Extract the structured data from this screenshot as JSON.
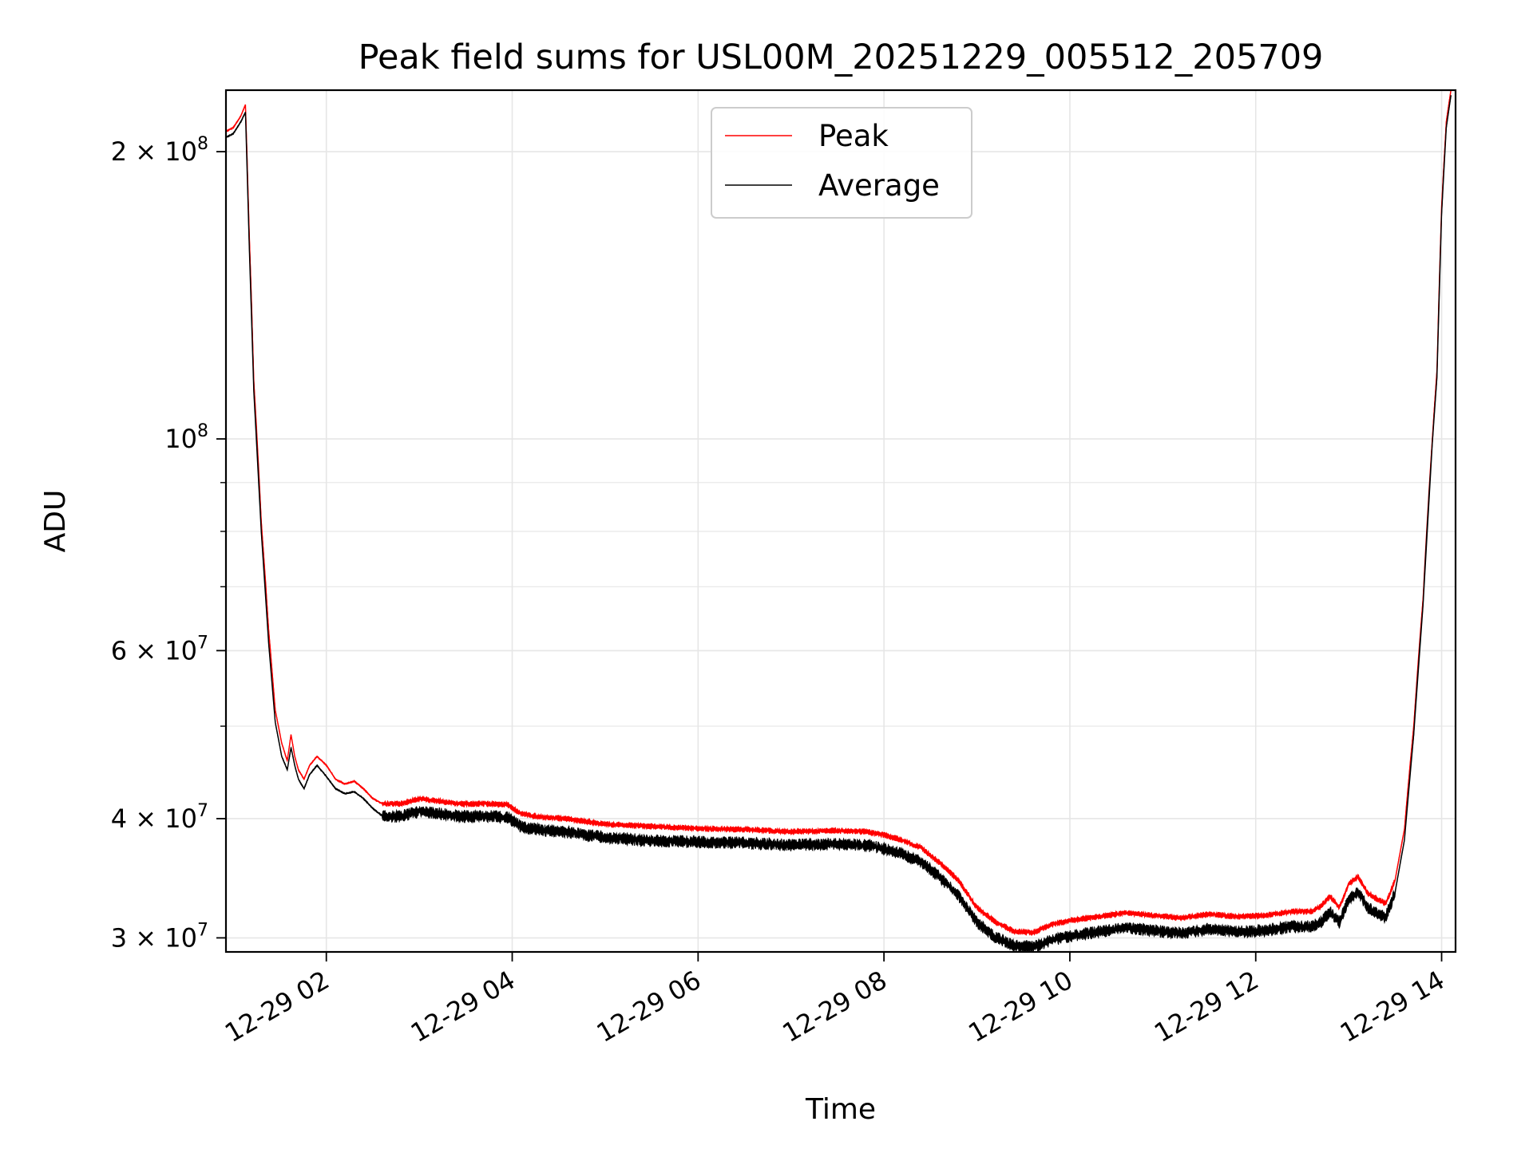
{
  "chart_data": {
    "type": "line",
    "title": "Peak field sums for USL00M_20251229_005512_205709",
    "xlabel": "Time",
    "ylabel": "ADU",
    "yscale": "log",
    "xlim_hours": [
      0.92,
      14.15
    ],
    "ylim": [
      29000000,
      232000000
    ],
    "grid": true,
    "legend_position": "top-center",
    "x_ticks": [
      {
        "hour": 2,
        "label": "12-29 02"
      },
      {
        "hour": 4,
        "label": "12-29 04"
      },
      {
        "hour": 6,
        "label": "12-29 06"
      },
      {
        "hour": 8,
        "label": "12-29 08"
      },
      {
        "hour": 10,
        "label": "12-29 10"
      },
      {
        "hour": 12,
        "label": "12-29 12"
      },
      {
        "hour": 14,
        "label": "12-29 14"
      }
    ],
    "y_ticks": [
      {
        "value": 30000000,
        "mantissa": "3",
        "exp": "7"
      },
      {
        "value": 40000000,
        "mantissa": "4",
        "exp": "7"
      },
      {
        "value": 60000000,
        "mantissa": "6",
        "exp": "7"
      },
      {
        "value": 100000000,
        "mantissa": "",
        "exp": "8"
      },
      {
        "value": 200000000,
        "mantissa": "2",
        "exp": "8"
      }
    ],
    "y_minor_ticks": [
      50000000,
      70000000,
      80000000,
      90000000
    ],
    "series": [
      {
        "name": "Peak",
        "color": "#ff0000",
        "x_hours": [
          0.92,
          1.0,
          1.08,
          1.13,
          1.17,
          1.22,
          1.3,
          1.38,
          1.45,
          1.52,
          1.58,
          1.62,
          1.66,
          1.7,
          1.76,
          1.82,
          1.9,
          2.0,
          2.1,
          2.2,
          2.3,
          2.4,
          2.5,
          2.6,
          2.7,
          2.8,
          3.0,
          3.2,
          3.4,
          3.6,
          3.8,
          3.95,
          4.1,
          4.3,
          4.6,
          5.0,
          5.5,
          6.0,
          6.5,
          7.0,
          7.5,
          7.8,
          8.0,
          8.2,
          8.4,
          8.6,
          8.8,
          9.0,
          9.2,
          9.4,
          9.6,
          9.8,
          10.0,
          10.3,
          10.6,
          10.9,
          11.2,
          11.5,
          11.8,
          12.1,
          12.4,
          12.6,
          12.7,
          12.8,
          12.9,
          13.0,
          13.1,
          13.2,
          13.3,
          13.4,
          13.5,
          13.6,
          13.7,
          13.8,
          13.9,
          13.95,
          14.0,
          14.05,
          14.1
        ],
        "values": [
          210000000,
          212000000,
          218000000,
          224000000,
          165000000,
          115000000,
          82000000,
          63000000,
          52000000,
          48000000,
          46000000,
          49000000,
          46500000,
          45000000,
          44000000,
          45500000,
          46500000,
          45500000,
          44000000,
          43500000,
          43800000,
          43000000,
          42000000,
          41500000,
          41500000,
          41500000,
          42000000,
          41800000,
          41500000,
          41500000,
          41500000,
          41400000,
          40500000,
          40200000,
          40000000,
          39500000,
          39300000,
          39100000,
          39000000,
          38800000,
          38900000,
          38800000,
          38500000,
          38000000,
          37300000,
          36000000,
          34500000,
          32300000,
          31200000,
          30500000,
          30400000,
          31000000,
          31300000,
          31600000,
          31900000,
          31700000,
          31500000,
          31800000,
          31600000,
          31700000,
          32000000,
          32000000,
          32400000,
          33200000,
          32300000,
          34200000,
          34800000,
          33500000,
          33000000,
          32600000,
          34500000,
          39000000,
          50000000,
          68000000,
          100000000,
          118000000,
          175000000,
          215000000,
          232000000
        ]
      },
      {
        "name": "Average",
        "color": "#000000",
        "x_hours": [
          0.92,
          1.0,
          1.08,
          1.13,
          1.17,
          1.22,
          1.3,
          1.38,
          1.45,
          1.52,
          1.58,
          1.62,
          1.66,
          1.7,
          1.76,
          1.82,
          1.9,
          2.0,
          2.1,
          2.2,
          2.3,
          2.4,
          2.5,
          2.6,
          2.7,
          2.8,
          3.0,
          3.2,
          3.4,
          3.6,
          3.8,
          3.95,
          4.1,
          4.3,
          4.6,
          5.0,
          5.5,
          6.0,
          6.5,
          7.0,
          7.5,
          7.8,
          8.0,
          8.2,
          8.4,
          8.6,
          8.8,
          9.0,
          9.2,
          9.4,
          9.6,
          9.8,
          10.0,
          10.3,
          10.6,
          10.9,
          11.2,
          11.5,
          11.8,
          12.1,
          12.4,
          12.6,
          12.7,
          12.8,
          12.9,
          13.0,
          13.1,
          13.2,
          13.3,
          13.4,
          13.5,
          13.6,
          13.7,
          13.8,
          13.9,
          13.95,
          14.0,
          14.05,
          14.1
        ],
        "values": [
          207000000,
          209000000,
          215000000,
          220000000,
          160000000,
          112000000,
          80000000,
          61000000,
          50500000,
          46500000,
          45000000,
          47500000,
          45500000,
          44000000,
          43000000,
          44500000,
          45500000,
          44300000,
          43000000,
          42500000,
          42700000,
          42000000,
          41000000,
          40300000,
          40300000,
          40300000,
          40800000,
          40600000,
          40300000,
          40300000,
          40300000,
          40200000,
          39300000,
          39000000,
          38800000,
          38300000,
          38000000,
          37900000,
          37800000,
          37600000,
          37700000,
          37600000,
          37300000,
          36800000,
          36100000,
          34800000,
          33300000,
          31200000,
          30100000,
          29500000,
          29400000,
          29900000,
          30200000,
          30500000,
          30800000,
          30600000,
          30400000,
          30700000,
          30500000,
          30600000,
          30900000,
          30900000,
          31200000,
          32000000,
          31200000,
          33000000,
          33600000,
          32400000,
          31900000,
          31600000,
          33500000,
          38000000,
          49000000,
          67000000,
          99000000,
          116000000,
          172000000,
          212000000,
          229000000
        ]
      }
    ]
  }
}
